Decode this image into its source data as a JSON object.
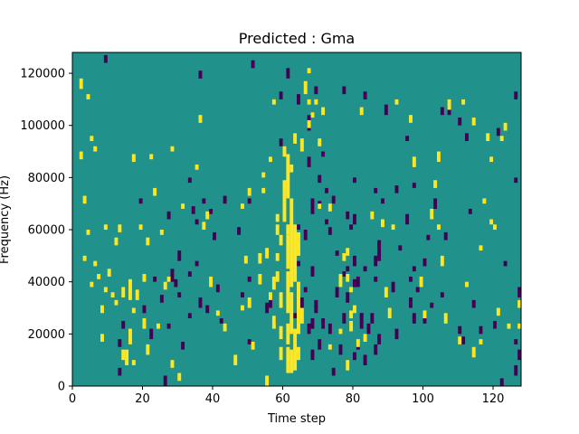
{
  "chart_data": {
    "type": "heatmap",
    "title": "Predicted : Gma",
    "xlabel": "Time step",
    "ylabel": "Frequency (Hz)",
    "xlim": [
      0,
      128
    ],
    "ylim": [
      0,
      128000
    ],
    "x_ticks": [
      0,
      20,
      40,
      60,
      80,
      100,
      120
    ],
    "x_tick_labels": [
      "0",
      "20",
      "40",
      "60",
      "80",
      "100",
      "120"
    ],
    "y_ticks": [
      0,
      20000,
      40000,
      60000,
      80000,
      100000,
      120000
    ],
    "y_tick_labels": [
      "0",
      "20000",
      "40000",
      "60000",
      "80000",
      "100000",
      "120000"
    ],
    "n_time_steps": 128,
    "n_freq_bins": 128,
    "grid": false,
    "colormap": "viridis",
    "value_range": [
      -1,
      1
    ],
    "colors": {
      "low": "#440154",
      "mid": "#21918c",
      "high": "#fde725"
    },
    "background_value": 0,
    "high_cells": [
      [
        2,
        114,
        118
      ],
      [
        2,
        87,
        90
      ],
      [
        3,
        70,
        73
      ],
      [
        3,
        48,
        50
      ],
      [
        4,
        110,
        112
      ],
      [
        4,
        58,
        60
      ],
      [
        5,
        94,
        96
      ],
      [
        5,
        38,
        40
      ],
      [
        6,
        90,
        92
      ],
      [
        6,
        46,
        48
      ],
      [
        7,
        41,
        43
      ],
      [
        8,
        28,
        31
      ],
      [
        8,
        17,
        20
      ],
      [
        9,
        60,
        62
      ],
      [
        9,
        36,
        38
      ],
      [
        10,
        42,
        45
      ],
      [
        11,
        34,
        36
      ],
      [
        12,
        31,
        33
      ],
      [
        12,
        54,
        57
      ],
      [
        13,
        59,
        62
      ],
      [
        14,
        10,
        14
      ],
      [
        14,
        34,
        38
      ],
      [
        15,
        8,
        14
      ],
      [
        16,
        16,
        22
      ],
      [
        16,
        33,
        41
      ],
      [
        17,
        8,
        10
      ],
      [
        17,
        28,
        30
      ],
      [
        17,
        86,
        89
      ],
      [
        18,
        33,
        37
      ],
      [
        19,
        60,
        62
      ],
      [
        20,
        22,
        26
      ],
      [
        20,
        40,
        43
      ],
      [
        21,
        12,
        16
      ],
      [
        21,
        54,
        57
      ],
      [
        22,
        87,
        89
      ],
      [
        23,
        73,
        76
      ],
      [
        24,
        22,
        24
      ],
      [
        25,
        58,
        60
      ],
      [
        26,
        37,
        40
      ],
      [
        27,
        40,
        42
      ],
      [
        28,
        90,
        92
      ],
      [
        28,
        7,
        10
      ],
      [
        31,
        68,
        70
      ],
      [
        30,
        2,
        5
      ],
      [
        35,
        83,
        85
      ],
      [
        36,
        101,
        104
      ],
      [
        37,
        60,
        63
      ],
      [
        38,
        64,
        67
      ],
      [
        39,
        38,
        42
      ],
      [
        41,
        27,
        29
      ],
      [
        43,
        21,
        24
      ],
      [
        46,
        8,
        12
      ],
      [
        48,
        68,
        70
      ],
      [
        48,
        29,
        31
      ],
      [
        49,
        47,
        50
      ],
      [
        50,
        30,
        34
      ],
      [
        50,
        73,
        76
      ],
      [
        51,
        14,
        17
      ],
      [
        53,
        47,
        51
      ],
      [
        53,
        39,
        43
      ],
      [
        54,
        80,
        82
      ],
      [
        54,
        74,
        76
      ],
      [
        55,
        49,
        53
      ],
      [
        55,
        0,
        4
      ],
      [
        56,
        86,
        88
      ],
      [
        56,
        33,
        36
      ],
      [
        57,
        22,
        27
      ],
      [
        57,
        108,
        110
      ],
      [
        57,
        37,
        42
      ],
      [
        58,
        58,
        62
      ],
      [
        58,
        63,
        66
      ],
      [
        59,
        54,
        58
      ],
      [
        58,
        40,
        44
      ],
      [
        58,
        48,
        51
      ],
      [
        59,
        18,
        23
      ],
      [
        59,
        30,
        36
      ],
      [
        59,
        10,
        15
      ],
      [
        60,
        88,
        92
      ],
      [
        60,
        63,
        79
      ],
      [
        61,
        72,
        89
      ],
      [
        61,
        58,
        62
      ],
      [
        61,
        45,
        58
      ],
      [
        61,
        28,
        44
      ],
      [
        61,
        16,
        24
      ],
      [
        61,
        5,
        15
      ],
      [
        62,
        38,
        72
      ],
      [
        62,
        20,
        36
      ],
      [
        62,
        5,
        14
      ],
      [
        62,
        82,
        85
      ],
      [
        63,
        93,
        97
      ],
      [
        63,
        40,
        62
      ],
      [
        63,
        6,
        22
      ],
      [
        64,
        20,
        40
      ],
      [
        64,
        50,
        59
      ],
      [
        64,
        10,
        15
      ],
      [
        65,
        24,
        30
      ],
      [
        65,
        90,
        95
      ],
      [
        66,
        112,
        117
      ],
      [
        67,
        108,
        110
      ],
      [
        67,
        99,
        102
      ],
      [
        67,
        120,
        122
      ],
      [
        68,
        103,
        105
      ],
      [
        69,
        108,
        110
      ],
      [
        70,
        92,
        95
      ],
      [
        70,
        68,
        70
      ],
      [
        71,
        104,
        107
      ],
      [
        73,
        67,
        70
      ],
      [
        73,
        14,
        16
      ],
      [
        76,
        38,
        43
      ],
      [
        76,
        20,
        22
      ],
      [
        77,
        48,
        51
      ],
      [
        78,
        50,
        53
      ],
      [
        78,
        40,
        43
      ],
      [
        79,
        36,
        38
      ],
      [
        78,
        6,
        10
      ],
      [
        79,
        26,
        29
      ],
      [
        79,
        21,
        25
      ],
      [
        80,
        28,
        31
      ],
      [
        81,
        15,
        18
      ],
      [
        82,
        104,
        107
      ],
      [
        83,
        17,
        20
      ],
      [
        85,
        64,
        67
      ],
      [
        88,
        61,
        64
      ],
      [
        89,
        34,
        38
      ],
      [
        90,
        26,
        30
      ],
      [
        91,
        60,
        62
      ],
      [
        92,
        108,
        110
      ],
      [
        96,
        101,
        104
      ],
      [
        97,
        84,
        88
      ],
      [
        99,
        38,
        42
      ],
      [
        100,
        26,
        29
      ],
      [
        102,
        64,
        68
      ],
      [
        103,
        76,
        79
      ],
      [
        104,
        86,
        90
      ],
      [
        104,
        60,
        62
      ],
      [
        105,
        46,
        50
      ],
      [
        106,
        24,
        28
      ],
      [
        107,
        106,
        110
      ],
      [
        110,
        16,
        19
      ],
      [
        111,
        108,
        110
      ],
      [
        112,
        38,
        40
      ],
      [
        114,
        100,
        103
      ],
      [
        114,
        11,
        15
      ],
      [
        116,
        16,
        18
      ],
      [
        116,
        52,
        54
      ],
      [
        117,
        70,
        72
      ],
      [
        118,
        94,
        97
      ],
      [
        119,
        86,
        88
      ],
      [
        119,
        62,
        64
      ],
      [
        120,
        60,
        62
      ],
      [
        121,
        27,
        30
      ],
      [
        122,
        94,
        96
      ],
      [
        123,
        98,
        101
      ],
      [
        124,
        22,
        24
      ],
      [
        127,
        30,
        33
      ],
      [
        127,
        22,
        24
      ]
    ],
    "low_cells": [
      [
        9,
        124,
        127
      ],
      [
        13,
        4,
        7
      ],
      [
        13,
        15,
        18
      ],
      [
        14,
        22,
        25
      ],
      [
        19,
        70,
        72
      ],
      [
        20,
        28,
        31
      ],
      [
        22,
        18,
        22
      ],
      [
        23,
        40,
        42
      ],
      [
        25,
        32,
        35
      ],
      [
        26,
        0,
        4
      ],
      [
        27,
        22,
        24
      ],
      [
        27,
        64,
        67
      ],
      [
        28,
        40,
        45
      ],
      [
        29,
        38,
        41
      ],
      [
        30,
        48,
        52
      ],
      [
        30,
        34,
        36
      ],
      [
        31,
        14,
        17
      ],
      [
        33,
        78,
        80
      ],
      [
        33,
        42,
        44
      ],
      [
        33,
        26,
        28
      ],
      [
        34,
        66,
        69
      ],
      [
        35,
        62,
        64
      ],
      [
        35,
        46,
        48
      ],
      [
        36,
        30,
        34
      ],
      [
        36,
        118,
        121
      ],
      [
        38,
        28,
        31
      ],
      [
        37,
        70,
        72
      ],
      [
        39,
        66,
        68
      ],
      [
        41,
        36,
        39
      ],
      [
        42,
        24,
        26
      ],
      [
        40,
        56,
        59
      ],
      [
        43,
        70,
        73
      ],
      [
        47,
        58,
        61
      ],
      [
        48,
        34,
        36
      ],
      [
        50,
        70,
        72
      ],
      [
        50,
        40,
        42
      ],
      [
        50,
        16,
        18
      ],
      [
        51,
        122,
        125
      ],
      [
        55,
        28,
        32
      ],
      [
        56,
        30,
        34
      ],
      [
        57,
        24,
        27
      ],
      [
        59,
        110,
        113
      ],
      [
        59,
        92,
        95
      ],
      [
        60,
        72,
        75
      ],
      [
        61,
        118,
        122
      ],
      [
        63,
        26,
        28
      ],
      [
        64,
        60,
        62
      ],
      [
        64,
        46,
        48
      ],
      [
        64,
        108,
        112
      ],
      [
        65,
        30,
        34
      ],
      [
        66,
        36,
        38
      ],
      [
        66,
        56,
        60
      ],
      [
        67,
        20,
        24
      ],
      [
        67,
        98,
        104
      ],
      [
        67,
        84,
        88
      ],
      [
        68,
        66,
        72
      ],
      [
        68,
        42,
        46
      ],
      [
        68,
        22,
        26
      ],
      [
        68,
        10,
        14
      ],
      [
        69,
        28,
        31
      ],
      [
        70,
        14,
        18
      ],
      [
        69,
        30,
        33
      ],
      [
        69,
        112,
        115
      ],
      [
        70,
        78,
        81
      ],
      [
        70,
        68,
        71
      ],
      [
        71,
        88,
        90
      ],
      [
        71,
        22,
        26
      ],
      [
        72,
        62,
        64
      ],
      [
        72,
        74,
        76
      ],
      [
        73,
        58,
        61
      ],
      [
        73,
        20,
        24
      ],
      [
        74,
        70,
        73
      ],
      [
        74,
        4,
        7
      ],
      [
        75,
        50,
        52
      ],
      [
        75,
        34,
        38
      ],
      [
        76,
        12,
        16
      ],
      [
        77,
        42,
        44
      ],
      [
        77,
        112,
        115
      ],
      [
        78,
        64,
        67
      ],
      [
        77,
        24,
        28
      ],
      [
        78,
        44,
        46
      ],
      [
        78,
        32,
        36
      ],
      [
        79,
        60,
        62
      ],
      [
        80,
        38,
        41
      ],
      [
        80,
        10,
        13
      ],
      [
        80,
        78,
        80
      ],
      [
        80,
        46,
        50
      ],
      [
        80,
        62,
        66
      ],
      [
        81,
        14,
        16
      ],
      [
        81,
        38,
        42
      ],
      [
        82,
        22,
        28
      ],
      [
        82,
        26,
        28
      ],
      [
        83,
        8,
        12
      ],
      [
        83,
        44,
        46
      ],
      [
        83,
        110,
        113
      ],
      [
        84,
        20,
        24
      ],
      [
        85,
        24,
        28
      ],
      [
        86,
        46,
        50
      ],
      [
        86,
        74,
        76
      ],
      [
        86,
        12,
        16
      ],
      [
        86,
        40,
        42
      ],
      [
        87,
        16,
        20
      ],
      [
        87,
        48,
        56
      ],
      [
        88,
        70,
        72
      ],
      [
        89,
        104,
        108
      ],
      [
        91,
        36,
        40
      ],
      [
        92,
        74,
        77
      ],
      [
        92,
        18,
        22
      ],
      [
        93,
        52,
        54
      ],
      [
        95,
        94,
        96
      ],
      [
        96,
        30,
        34
      ],
      [
        96,
        40,
        42
      ],
      [
        95,
        62,
        66
      ],
      [
        97,
        24,
        28
      ],
      [
        97,
        76,
        78
      ],
      [
        97,
        44,
        46
      ],
      [
        98,
        36,
        38
      ],
      [
        100,
        24,
        27
      ],
      [
        100,
        46,
        49
      ],
      [
        101,
        56,
        58
      ],
      [
        102,
        30,
        32
      ],
      [
        103,
        68,
        72
      ],
      [
        104,
        86,
        89
      ],
      [
        105,
        104,
        107
      ],
      [
        106,
        56,
        59
      ],
      [
        105,
        34,
        36
      ],
      [
        107,
        104,
        107
      ],
      [
        110,
        100,
        103
      ],
      [
        110,
        20,
        23
      ],
      [
        111,
        16,
        19
      ],
      [
        112,
        94,
        97
      ],
      [
        113,
        66,
        68
      ],
      [
        114,
        30,
        33
      ],
      [
        116,
        20,
        23
      ],
      [
        120,
        22,
        25
      ],
      [
        121,
        96,
        99
      ],
      [
        122,
        0,
        3
      ],
      [
        123,
        46,
        48
      ],
      [
        126,
        16,
        18
      ],
      [
        126,
        110,
        113
      ],
      [
        126,
        78,
        80
      ],
      [
        126,
        4,
        8
      ],
      [
        127,
        10,
        14
      ],
      [
        127,
        34,
        38
      ]
    ]
  }
}
